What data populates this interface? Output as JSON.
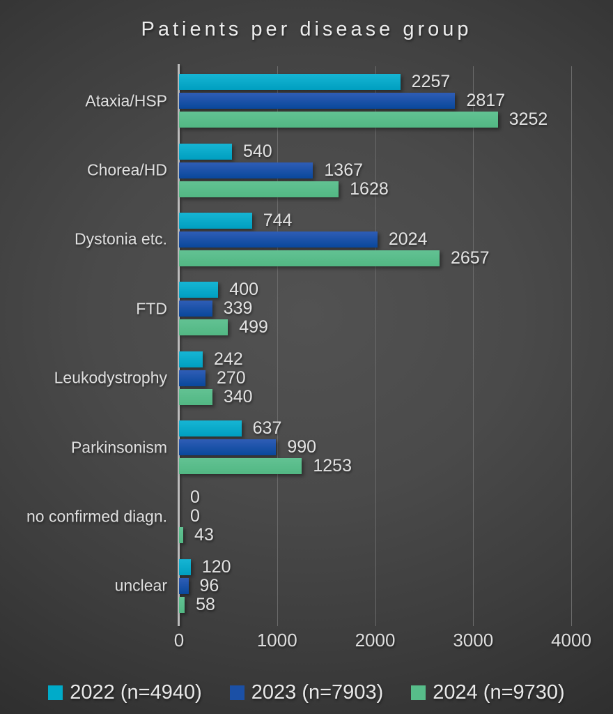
{
  "title": "Patients per disease group",
  "chart_data": {
    "type": "bar",
    "orientation": "horizontal",
    "title": "Patients per disease group",
    "categories": [
      "Ataxia/HSP",
      "Chorea/HD",
      "Dystonia etc.",
      "FTD",
      "Leukodystrophy",
      "Parkinsonism",
      "no confirmed diagn.",
      "unclear"
    ],
    "series": [
      {
        "name": "2022 (n=4940)",
        "color": "#00abc9",
        "gradient": [
          "#16b5d4",
          "#009fc0"
        ],
        "values": [
          2257,
          540,
          744,
          400,
          242,
          637,
          0,
          120
        ]
      },
      {
        "name": "2023 (n=7903)",
        "color": "#1b50a6",
        "gradient": [
          "#2f5db6",
          "#09489b"
        ],
        "values": [
          2817,
          1367,
          2024,
          339,
          270,
          990,
          0,
          96
        ]
      },
      {
        "name": "2024 (n=9730)",
        "color": "#57bd8a",
        "gradient": [
          "#62c293",
          "#52b783"
        ],
        "values": [
          3252,
          1628,
          2657,
          499,
          340,
          1253,
          43,
          58
        ]
      }
    ],
    "xlim": [
      0,
      4000
    ],
    "xticks": [
      0,
      1000,
      2000,
      3000,
      4000
    ],
    "grid": "vertical gridlines every 1000, no minor grid",
    "legend_position": "bottom",
    "value_labels": "at end of each bar",
    "background": {
      "center": "#515151",
      "edge": "#242424"
    },
    "text_color": "#e3e3e3",
    "axis_line_color": "#bdbdbd",
    "gridline_color": "#6b6b6b"
  }
}
